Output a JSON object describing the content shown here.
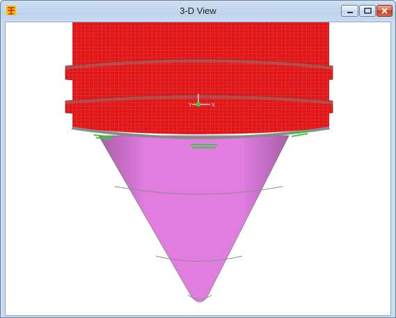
{
  "window": {
    "title": "3-D View",
    "controls": [
      "minimize-icon",
      "maximize-icon",
      "close-icon"
    ]
  },
  "viewport": {
    "model": {
      "upper_section_color": "#e61414",
      "cone_color": "#e47ce4",
      "mesh_line_color": "#9b9b9b",
      "support_color": "#3cc83c",
      "axis_labels": [
        "Y",
        "X"
      ]
    }
  },
  "colors": {
    "titlebar": "#bcd3ec",
    "close_button": "#c8391f",
    "background": "#ffffff"
  }
}
